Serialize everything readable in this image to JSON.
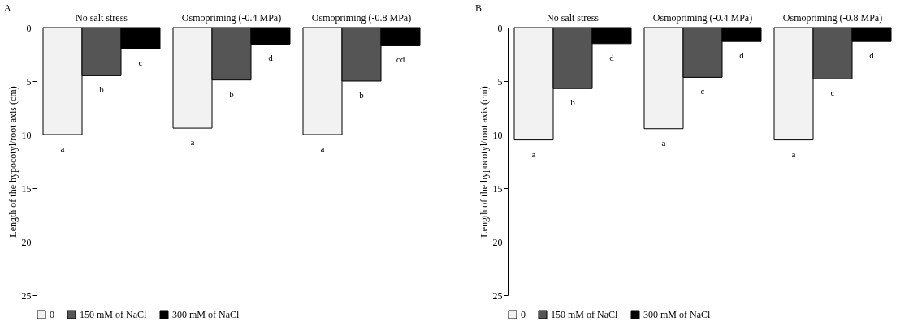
{
  "chart_data": [
    {
      "type": "bar",
      "title": "A",
      "ylabel": "Length of the hypocotyl/root axis  (cm)",
      "categories": [
        "No salt stress",
        "Osmopriming (-0.4 MPa)",
        "Osmopriming (-0.8 MPa)"
      ],
      "series": [
        {
          "name": "0",
          "color": "#f2f2f2",
          "values": [
            10.0,
            9.4,
            10.0
          ],
          "value_labels": [
            "a",
            "a",
            "a"
          ]
        },
        {
          "name": "150 mM of NaCl",
          "color": "#555555",
          "values": [
            4.5,
            4.9,
            5.0
          ],
          "value_labels": [
            "b",
            "b",
            "b"
          ]
        },
        {
          "name": "300 mM of NaCl",
          "color": "#000000",
          "values": [
            2.0,
            1.55,
            1.7
          ],
          "value_labels": [
            "c",
            "d",
            "cd"
          ]
        }
      ],
      "ylim": [
        25,
        0
      ],
      "yticks": [
        0,
        5,
        10,
        15,
        20,
        25
      ],
      "legend": "bottom"
    },
    {
      "type": "bar",
      "title": "B",
      "ylabel": "Length of the hypocotyl/root axis  (cm)",
      "categories": [
        "No salt stress",
        "Osmopriming (-0.4 MPa)",
        "Osmopriming (-0.8 MPa)"
      ],
      "series": [
        {
          "name": "0",
          "color": "#f2f2f2",
          "values": [
            10.5,
            9.45,
            10.5
          ],
          "value_labels": [
            "a",
            "a",
            "a"
          ]
        },
        {
          "name": "150 mM of NaCl",
          "color": "#555555",
          "values": [
            5.7,
            4.65,
            4.8
          ],
          "value_labels": [
            "b",
            "c",
            "c"
          ]
        },
        {
          "name": "300 mM of NaCl",
          "color": "#000000",
          "values": [
            1.5,
            1.3,
            1.3
          ],
          "value_labels": [
            "d",
            "d",
            "d"
          ]
        }
      ],
      "ylim": [
        25,
        0
      ],
      "yticks": [
        0,
        5,
        10,
        15,
        20,
        25
      ],
      "legend": "bottom"
    }
  ]
}
